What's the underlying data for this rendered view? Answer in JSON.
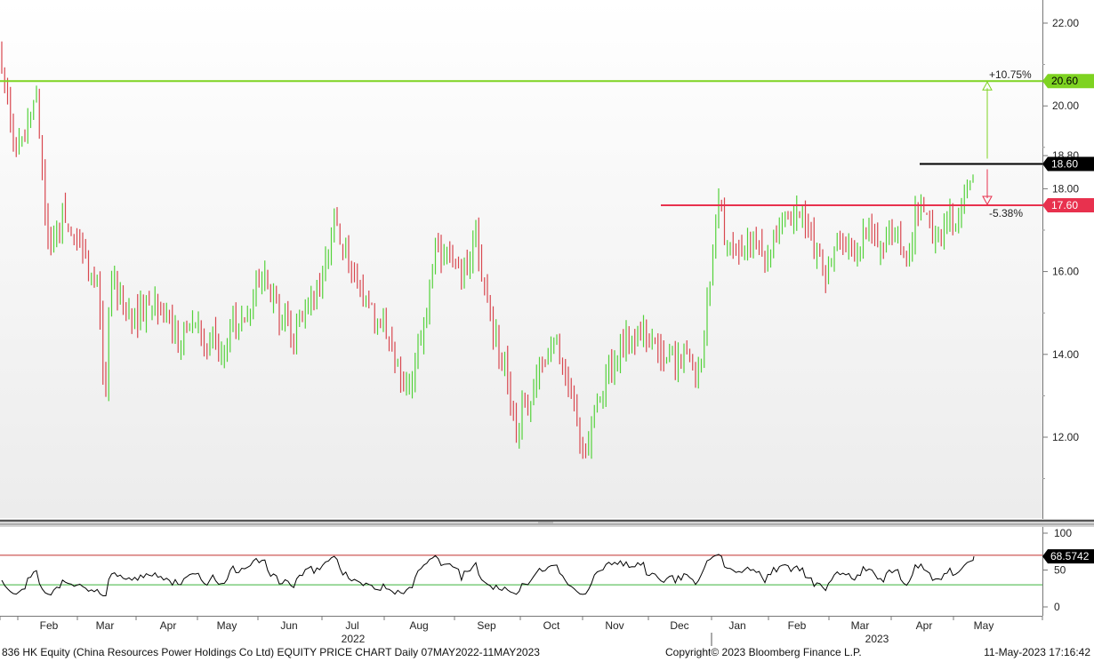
{
  "colors": {
    "up": "#53d23a",
    "down": "#d8474f",
    "resistance": "#7ed321",
    "support": "#e8314e",
    "current": "#000000",
    "rsi_line": "#000000",
    "rsi_upper": "#c0302e",
    "rsi_lower": "#3bb33b"
  },
  "footer": {
    "left": "836 HK Equity (China Resources Power Holdings Co Ltd) EQUITY PRICE CHART  Daily 07MAY2022-11MAY2023",
    "mid": "Copyright© 2023 Bloomberg Finance L.P.",
    "right": "11-May-2023  17:16:42"
  },
  "chart_data": [
    {
      "type": "line",
      "subtype": "candlestick",
      "panel": "price",
      "y_range": [
        10.0,
        22.4
      ],
      "y_ticks": [
        "12.00",
        "14.00",
        "16.00",
        "18.00",
        "20.00",
        "22.00"
      ],
      "x_labels": [
        "Feb",
        "Mar",
        "Apr",
        "May",
        "Jun",
        "Jul",
        "Aug",
        "Sep",
        "Oct",
        "Nov",
        "Dec",
        "Jan",
        "Feb",
        "Mar",
        "Apr",
        "May"
      ],
      "year_labels": [
        "2022",
        "2023"
      ],
      "levels": [
        {
          "value": 20.6,
          "label": "20.60",
          "annotation": "+10.75%",
          "color": "#7ed321"
        },
        {
          "value": 18.6,
          "label": "18.60",
          "color": "#000000"
        },
        {
          "value": 17.6,
          "label": "17.60",
          "annotation": "-5.38%",
          "color": "#e8314e"
        }
      ],
      "background_label": "18.80",
      "monthly_close": [
        {
          "month": "Feb",
          "close": 16.2
        },
        {
          "month": "Mar",
          "close": 14.6
        },
        {
          "month": "Apr",
          "close": 14.4
        },
        {
          "month": "May",
          "close": 14.6
        },
        {
          "month": "Jun",
          "close": 15.2
        },
        {
          "month": "Jul",
          "close": 15.6
        },
        {
          "month": "Aug",
          "close": 13.6
        },
        {
          "month": "Sep",
          "close": 14.3
        },
        {
          "month": "Oct",
          "close": 12.0
        },
        {
          "month": "Nov",
          "close": 14.7
        },
        {
          "month": "Dec",
          "close": 13.6
        },
        {
          "month": "Jan",
          "close": 16.8
        },
        {
          "month": "Feb",
          "close": 16.9
        },
        {
          "month": "Mar",
          "close": 16.6
        },
        {
          "month": "Apr",
          "close": 16.8
        },
        {
          "month": "May",
          "close": 18.6
        }
      ]
    },
    {
      "type": "line",
      "panel": "rsi",
      "y_range": [
        -5,
        110
      ],
      "y_ticks": [
        "100",
        "50",
        "0"
      ],
      "current_value": "68.5742",
      "upper_band": 70,
      "lower_band": 30
    }
  ]
}
